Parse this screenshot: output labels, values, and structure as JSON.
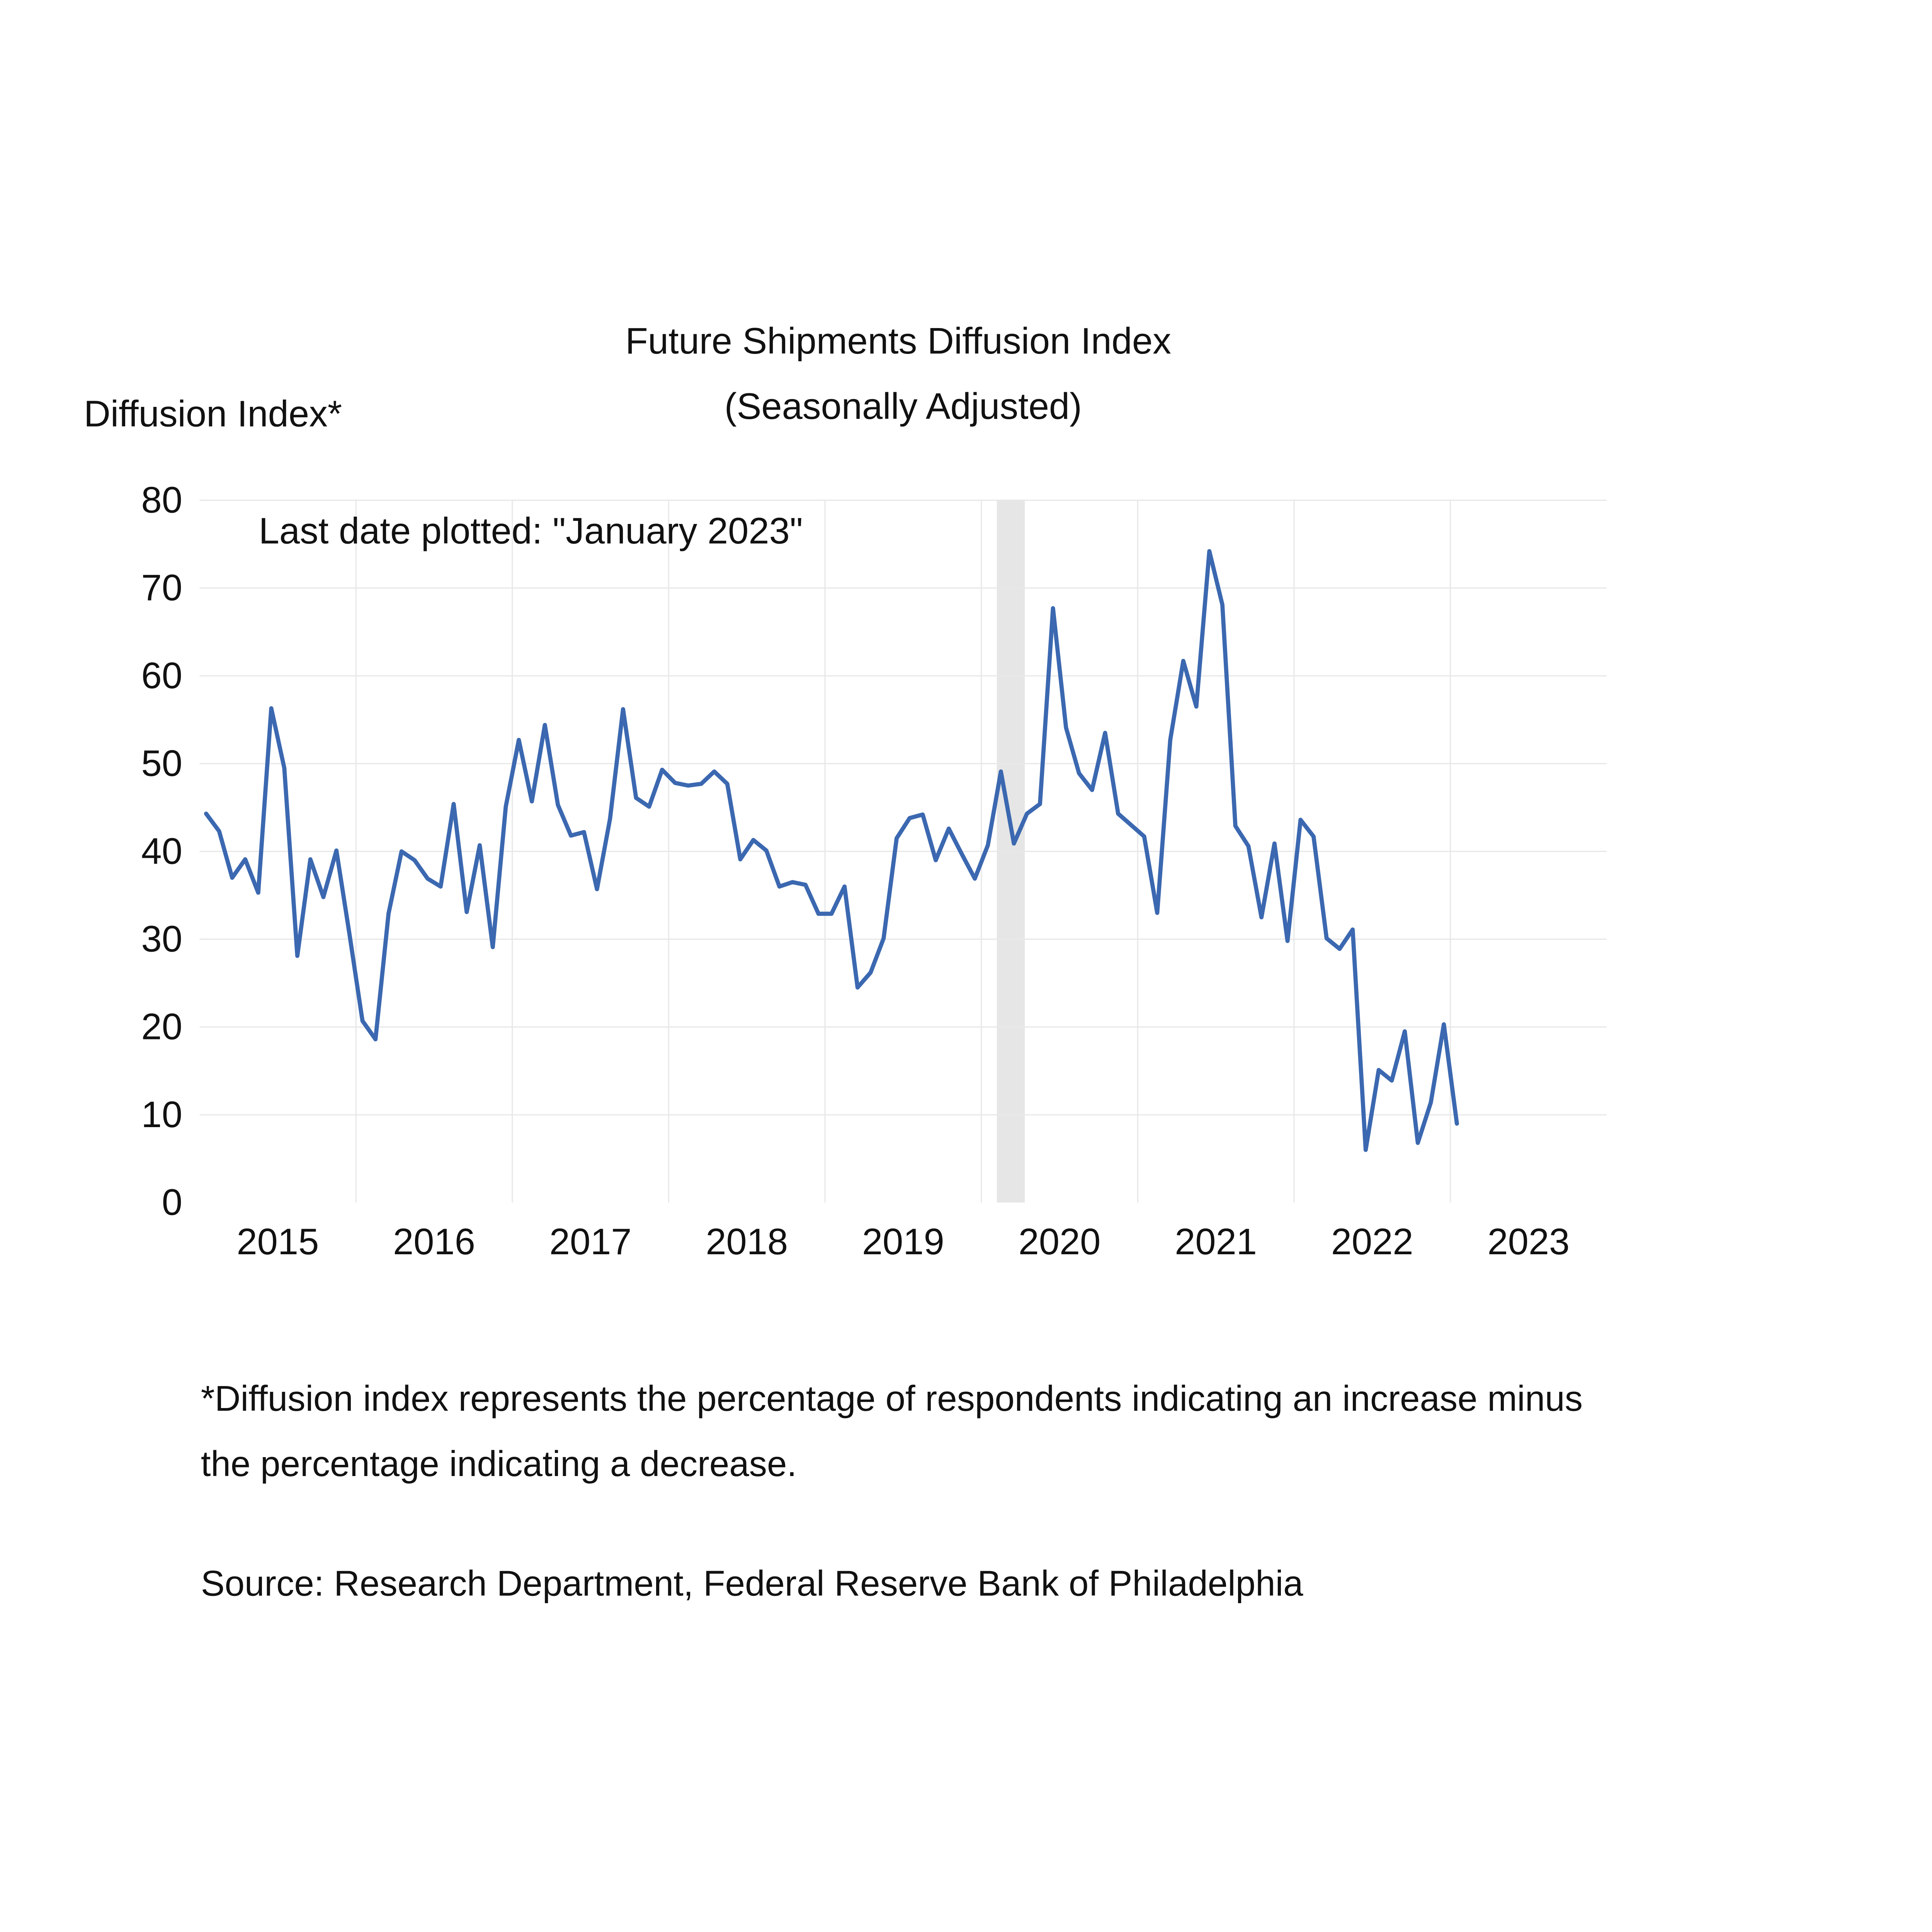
{
  "chart_data": {
    "type": "line",
    "title": "Future Shipments Diffusion Index",
    "subtitle": "(Seasonally Adjusted)",
    "ylabel": "Diffusion Index*",
    "xlabel": "",
    "annotation": "Last date plotted: \"January 2023\"",
    "ylim": [
      0,
      80
    ],
    "yticks": [
      0,
      10,
      20,
      30,
      40,
      50,
      60,
      70,
      80
    ],
    "xlim": [
      "2015-01",
      "2023-12"
    ],
    "xtick_labels": [
      "2015",
      "2016",
      "2017",
      "2018",
      "2019",
      "2020",
      "2021",
      "2022",
      "2023"
    ],
    "grid": true,
    "legend": "none",
    "line_color": "#3b68b0",
    "recession_shading": {
      "start": "2020-02",
      "end": "2020-04",
      "color": "#e6e6e6"
    },
    "start_month": "2015-01",
    "frequency": "monthly",
    "series": [
      {
        "name": "Future Shipments Diffusion Index",
        "values": [
          44.3,
          42.3,
          37.0,
          39.1,
          35.3,
          56.3,
          49.5,
          28.1,
          39.1,
          34.8,
          40.1,
          30.6,
          20.7,
          18.6,
          32.9,
          40.0,
          39.0,
          36.9,
          36.0,
          45.4,
          33.1,
          40.7,
          29.1,
          45.1,
          52.7,
          45.7,
          54.4,
          45.3,
          41.8,
          42.2,
          35.7,
          43.7,
          56.2,
          46.1,
          45.1,
          49.3,
          47.8,
          47.5,
          47.7,
          49.1,
          47.7,
          39.1,
          41.3,
          40.1,
          36.0,
          36.5,
          36.2,
          32.9,
          32.9,
          36.0,
          24.5,
          26.2,
          30.1,
          41.5,
          43.8,
          44.2,
          39.0,
          42.6,
          39.7,
          36.9,
          40.7,
          49.1,
          40.9,
          44.3,
          45.4,
          67.7,
          54.1,
          48.9,
          47.0,
          53.5,
          44.3,
          43.0,
          41.7,
          33.0,
          52.7,
          61.7,
          56.5,
          74.2,
          68.1,
          42.9,
          40.6,
          32.5,
          40.9,
          29.8,
          43.6,
          41.7,
          30.1,
          28.9,
          31.1,
          6.0,
          15.1,
          13.9,
          19.5,
          6.8,
          11.4,
          20.3,
          9.0
        ]
      }
    ]
  },
  "footnote_lines": [
    "*Diffusion index represents the percentage of respondents indicating an increase minus",
    "the percentage indicating a decrease."
  ],
  "source": "Source: Research Department, Federal Reserve Bank of Philadelphia"
}
